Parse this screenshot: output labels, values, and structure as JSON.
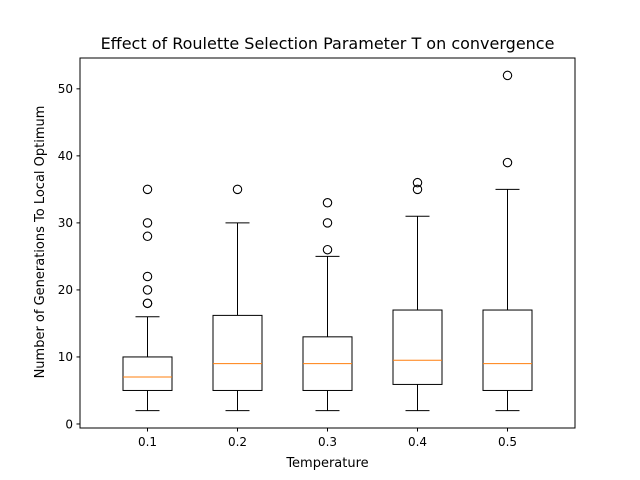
{
  "chart_data": {
    "type": "box",
    "title": "Effect of Roulette Selection Parameter T on convergence",
    "xlabel": "Temperature",
    "ylabel": "Number of Generations To Local Optimum",
    "categories": [
      "0.1",
      "0.2",
      "0.3",
      "0.4",
      "0.5"
    ],
    "ylim": [
      -0.6,
      54.6
    ],
    "yticks": [
      0,
      10,
      20,
      30,
      40,
      50
    ],
    "grid": false,
    "median_color": "#ff7f0e",
    "boxes": [
      {
        "category": "0.1",
        "whisker_low": 2,
        "q1": 5,
        "median": 7,
        "q3": 10,
        "whisker_high": 16,
        "outliers": [
          18,
          18,
          20,
          22,
          28,
          30,
          35
        ]
      },
      {
        "category": "0.2",
        "whisker_low": 2,
        "q1": 5,
        "median": 9,
        "q3": 16.2,
        "whisker_high": 30,
        "outliers": [
          35
        ]
      },
      {
        "category": "0.3",
        "whisker_low": 2,
        "q1": 5,
        "median": 9,
        "q3": 13,
        "whisker_high": 25,
        "outliers": [
          26,
          30,
          33
        ]
      },
      {
        "category": "0.4",
        "whisker_low": 2,
        "q1": 5.9,
        "median": 9.5,
        "q3": 17,
        "whisker_high": 31,
        "outliers": [
          35,
          36
        ]
      },
      {
        "category": "0.5",
        "whisker_low": 2,
        "q1": 5,
        "median": 9,
        "q3": 17,
        "whisker_high": 35,
        "outliers": [
          39,
          52
        ]
      }
    ]
  }
}
